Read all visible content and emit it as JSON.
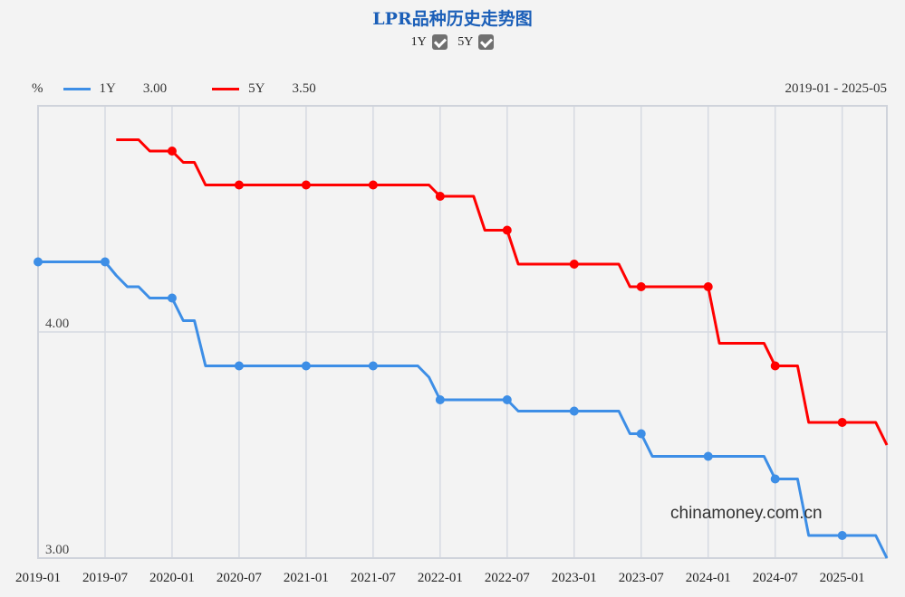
{
  "title": "LPR品种历史走势图",
  "toggles": [
    {
      "label": "1Y",
      "checked": true
    },
    {
      "label": "5Y",
      "checked": true
    }
  ],
  "legend": {
    "unit": "%",
    "series": [
      {
        "name": "1Y",
        "value": "3.00",
        "color": "#3d8ee6"
      },
      {
        "name": "5Y",
        "value": "3.50",
        "color": "#ff0000"
      }
    ]
  },
  "date_range": "2019-01 - 2025-05",
  "watermark": "chinamoney.com.cn",
  "chart_data": {
    "type": "line",
    "title": "LPR品种历史走势图",
    "xlabel": "",
    "ylabel": "%",
    "ylim": [
      3.0,
      4.99
    ],
    "grid": true,
    "legend_position": "top-left",
    "x_tick_labels": [
      "2019-01",
      "2019-07",
      "2020-01",
      "2020-07",
      "2021-01",
      "2021-07",
      "2022-01",
      "2022-07",
      "2023-01",
      "2023-07",
      "2024-01",
      "2024-07",
      "2025-01"
    ],
    "y_tick_labels": [
      "3.00",
      "4.00"
    ],
    "x": [
      "2019-01",
      "2019-02",
      "2019-03",
      "2019-04",
      "2019-05",
      "2019-06",
      "2019-07",
      "2019-08",
      "2019-09",
      "2019-10",
      "2019-11",
      "2019-12",
      "2020-01",
      "2020-02",
      "2020-03",
      "2020-04",
      "2020-05",
      "2020-06",
      "2020-07",
      "2020-08",
      "2020-09",
      "2020-10",
      "2020-11",
      "2020-12",
      "2021-01",
      "2021-02",
      "2021-03",
      "2021-04",
      "2021-05",
      "2021-06",
      "2021-07",
      "2021-08",
      "2021-09",
      "2021-10",
      "2021-11",
      "2021-12",
      "2022-01",
      "2022-02",
      "2022-03",
      "2022-04",
      "2022-05",
      "2022-06",
      "2022-07",
      "2022-08",
      "2022-09",
      "2022-10",
      "2022-11",
      "2022-12",
      "2023-01",
      "2023-02",
      "2023-03",
      "2023-04",
      "2023-05",
      "2023-06",
      "2023-07",
      "2023-08",
      "2023-09",
      "2023-10",
      "2023-11",
      "2023-12",
      "2024-01",
      "2024-02",
      "2024-03",
      "2024-04",
      "2024-05",
      "2024-06",
      "2024-07",
      "2024-08",
      "2024-09",
      "2024-10",
      "2024-11",
      "2024-12",
      "2025-01",
      "2025-02",
      "2025-03",
      "2025-04",
      "2025-05"
    ],
    "series": [
      {
        "name": "1Y",
        "color": "#3d8ee6",
        "values": [
          4.31,
          4.31,
          4.31,
          4.31,
          4.31,
          4.31,
          4.31,
          4.25,
          4.2,
          4.2,
          4.15,
          4.15,
          4.15,
          4.05,
          4.05,
          3.85,
          3.85,
          3.85,
          3.85,
          3.85,
          3.85,
          3.85,
          3.85,
          3.85,
          3.85,
          3.85,
          3.85,
          3.85,
          3.85,
          3.85,
          3.85,
          3.85,
          3.85,
          3.85,
          3.85,
          3.8,
          3.7,
          3.7,
          3.7,
          3.7,
          3.7,
          3.7,
          3.7,
          3.65,
          3.65,
          3.65,
          3.65,
          3.65,
          3.65,
          3.65,
          3.65,
          3.65,
          3.65,
          3.55,
          3.55,
          3.45,
          3.45,
          3.45,
          3.45,
          3.45,
          3.45,
          3.45,
          3.45,
          3.45,
          3.45,
          3.45,
          3.35,
          3.35,
          3.35,
          3.1,
          3.1,
          3.1,
          3.1,
          3.1,
          3.1,
          3.1,
          3.0
        ]
      },
      {
        "name": "5Y",
        "color": "#ff0000",
        "values": [
          null,
          null,
          null,
          null,
          null,
          null,
          null,
          4.85,
          4.85,
          4.85,
          4.8,
          4.8,
          4.8,
          4.75,
          4.75,
          4.65,
          4.65,
          4.65,
          4.65,
          4.65,
          4.65,
          4.65,
          4.65,
          4.65,
          4.65,
          4.65,
          4.65,
          4.65,
          4.65,
          4.65,
          4.65,
          4.65,
          4.65,
          4.65,
          4.65,
          4.65,
          4.6,
          4.6,
          4.6,
          4.6,
          4.45,
          4.45,
          4.45,
          4.3,
          4.3,
          4.3,
          4.3,
          4.3,
          4.3,
          4.3,
          4.3,
          4.3,
          4.3,
          4.2,
          4.2,
          4.2,
          4.2,
          4.2,
          4.2,
          4.2,
          4.2,
          3.95,
          3.95,
          3.95,
          3.95,
          3.95,
          3.85,
          3.85,
          3.85,
          3.6,
          3.6,
          3.6,
          3.6,
          3.6,
          3.6,
          3.6,
          3.5
        ]
      }
    ]
  }
}
